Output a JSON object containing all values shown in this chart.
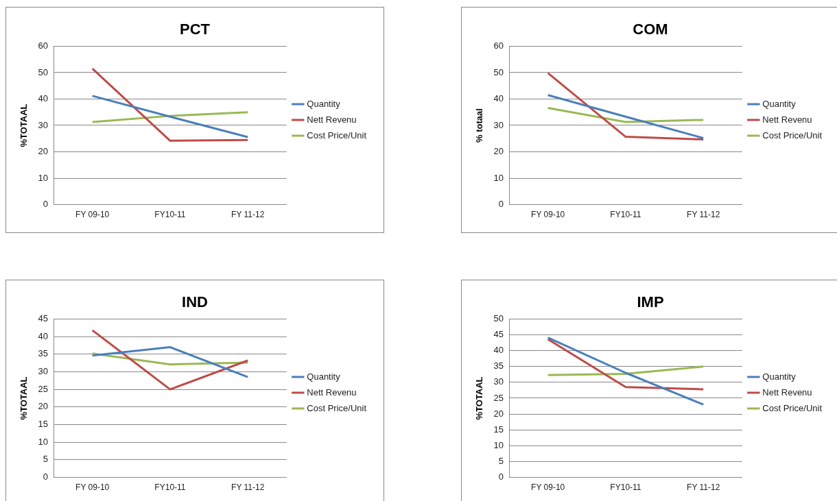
{
  "chart_data": [
    {
      "type": "line",
      "title": "PCT",
      "ylabel": "%TOTAAL",
      "categories": [
        "FY 09-10",
        "FY10-11",
        "FY 11-12"
      ],
      "ylim": [
        0,
        60
      ],
      "yticks": [
        0,
        10,
        20,
        30,
        40,
        50,
        60
      ],
      "grid": "y",
      "legend": "right",
      "marker": "none",
      "series": [
        {
          "name": "Quantity",
          "color": "#4a7ebb",
          "values": [
            41.2,
            33.3,
            25.6
          ]
        },
        {
          "name": "Nett Revenu",
          "color": "#be4b48",
          "values": [
            51.5,
            24.2,
            24.5
          ]
        },
        {
          "name": "Cost Price/Unit",
          "color": "#98b954",
          "values": [
            31.3,
            33.6,
            35.0
          ]
        }
      ]
    },
    {
      "type": "line",
      "title": "COM",
      "ylabel": "% totaal",
      "categories": [
        "FY 09-10",
        "FY10-11",
        "FY 11-12"
      ],
      "ylim": [
        0,
        60
      ],
      "yticks": [
        0,
        10,
        20,
        30,
        40,
        50,
        60
      ],
      "grid": "y",
      "legend": "right",
      "marker": "none",
      "series": [
        {
          "name": "Quantity",
          "color": "#4a7ebb",
          "values": [
            41.5,
            33.3,
            25.2
          ]
        },
        {
          "name": "Nett Revenu",
          "color": "#be4b48",
          "values": [
            49.8,
            25.7,
            24.7
          ]
        },
        {
          "name": "Cost Price/Unit",
          "color": "#98b954",
          "values": [
            36.6,
            31.3,
            32.1
          ]
        }
      ]
    },
    {
      "type": "line",
      "title": "IND",
      "ylabel": "%TOTAAL",
      "categories": [
        "FY 09-10",
        "FY10-11",
        "FY 11-12"
      ],
      "ylim": [
        0,
        45
      ],
      "yticks": [
        0,
        5,
        10,
        15,
        20,
        25,
        30,
        35,
        40,
        45
      ],
      "grid": "y",
      "legend": "right",
      "marker": "none",
      "series": [
        {
          "name": "Quantity",
          "color": "#4a7ebb",
          "values": [
            34.6,
            37.0,
            28.5
          ]
        },
        {
          "name": "Nett Revenu",
          "color": "#be4b48",
          "values": [
            41.8,
            25.0,
            33.2
          ]
        },
        {
          "name": "Cost Price/Unit",
          "color": "#98b954",
          "values": [
            35.2,
            32.1,
            32.6
          ]
        }
      ]
    },
    {
      "type": "line",
      "title": "IMP",
      "ylabel": "%TOTAAL",
      "categories": [
        "FY 09-10",
        "FY10-11",
        "FY 11-12"
      ],
      "ylim": [
        0,
        50
      ],
      "yticks": [
        0,
        5,
        10,
        15,
        20,
        25,
        30,
        35,
        40,
        45,
        50
      ],
      "grid": "y",
      "legend": "right",
      "marker": "none",
      "series": [
        {
          "name": "Quantity",
          "color": "#4a7ebb",
          "values": [
            44.1,
            33.0,
            23.0
          ]
        },
        {
          "name": "Nett Revenu",
          "color": "#be4b48",
          "values": [
            43.6,
            28.5,
            27.8
          ]
        },
        {
          "name": "Cost Price/Unit",
          "color": "#98b954",
          "values": [
            32.3,
            32.7,
            35.0
          ]
        }
      ]
    }
  ]
}
